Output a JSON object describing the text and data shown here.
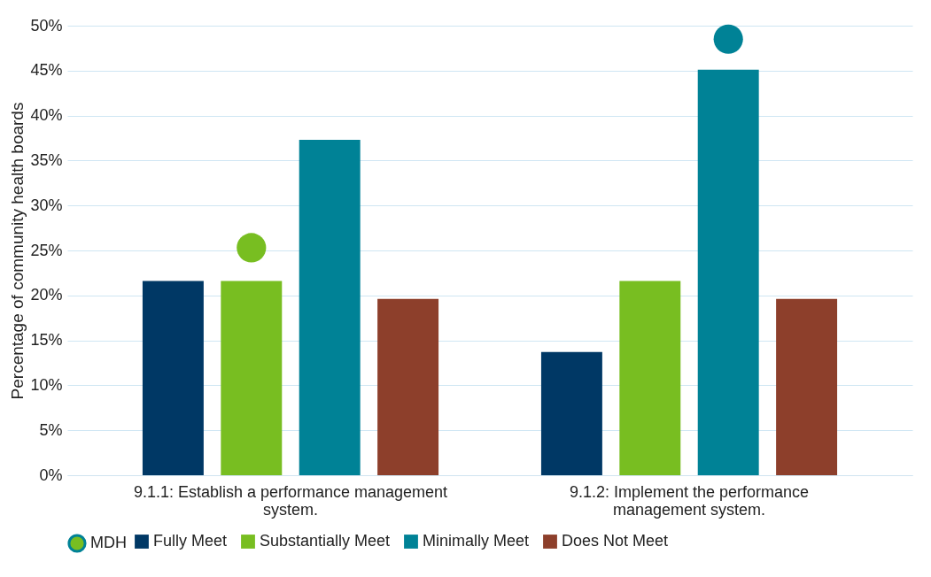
{
  "chart_data": {
    "type": "bar",
    "ylabel": "Percentage of community health boards",
    "categories": [
      "9.1.1: Establish a performance management system.",
      "9.1.2: Implement the performance management system."
    ],
    "series": [
      {
        "name": "MDH",
        "type": "scatter",
        "colors": [
          "#78be21",
          "#008296"
        ],
        "values": [
          25.3,
          48.5
        ]
      },
      {
        "name": "Fully Meet",
        "color": "#003865",
        "values": [
          21.6,
          13.7
        ]
      },
      {
        "name": "Substantially Meet",
        "color": "#78be21",
        "values": [
          21.6,
          21.6
        ]
      },
      {
        "name": "Minimally Meet",
        "color": "#008296",
        "values": [
          37.3,
          45.1
        ]
      },
      {
        "name": "Does Not Meet",
        "color": "#8d3f2b",
        "values": [
          19.6,
          19.6
        ]
      }
    ],
    "ylim": [
      0,
      50
    ],
    "yticks": [
      {
        "value": 0,
        "label": "0%"
      },
      {
        "value": 5,
        "label": "5%"
      },
      {
        "value": 10,
        "label": "10%"
      },
      {
        "value": 15,
        "label": "15%"
      },
      {
        "value": 20,
        "label": "20%"
      },
      {
        "value": 25,
        "label": "25%"
      },
      {
        "value": 30,
        "label": "30%"
      },
      {
        "value": 35,
        "label": "35%"
      },
      {
        "value": 40,
        "label": "40%"
      },
      {
        "value": 45,
        "label": "45%"
      },
      {
        "value": 50,
        "label": "50%"
      }
    ],
    "grid": "y",
    "legend": "bottom",
    "marker": "circle"
  }
}
